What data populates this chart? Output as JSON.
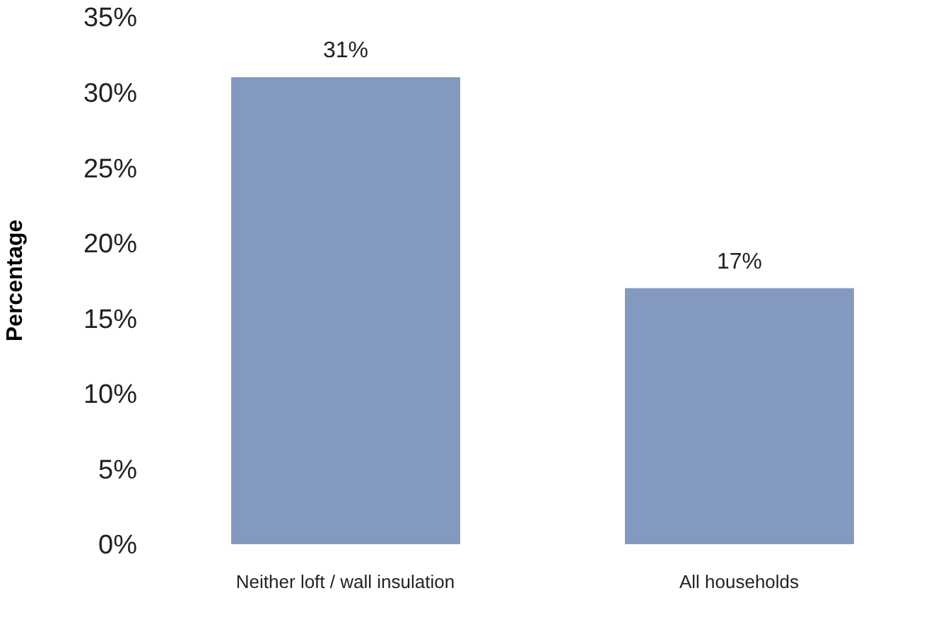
{
  "chart_data": {
    "type": "bar",
    "ylabel": "Percentage",
    "categories": [
      "Neither loft / wall insulation",
      "All households"
    ],
    "values": [
      31,
      17
    ],
    "value_labels": [
      "31%",
      "17%"
    ],
    "color": "#8499c0",
    "grid": false,
    "legend": false,
    "ylim": [
      0,
      35
    ],
    "yticks": [
      {
        "value": 0,
        "label": "0%"
      },
      {
        "value": 5,
        "label": "5%"
      },
      {
        "value": 10,
        "label": "10%"
      },
      {
        "value": 15,
        "label": "15%"
      },
      {
        "value": 20,
        "label": "20%"
      },
      {
        "value": 25,
        "label": "25%"
      },
      {
        "value": 30,
        "label": "30%"
      },
      {
        "value": 35,
        "label": "35%"
      }
    ]
  }
}
